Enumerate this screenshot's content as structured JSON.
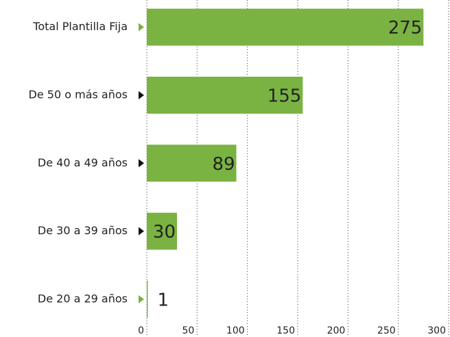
{
  "chart_data": {
    "type": "bar",
    "orientation": "horizontal",
    "categories": [
      "Total Plantilla Fija",
      "De 50 o más años",
      "De 40 a 49 años",
      "De 30 a 39 años",
      "De 20 a 29 años"
    ],
    "values": [
      275,
      155,
      89,
      30,
      1
    ],
    "color": "#7ab342",
    "marker_colors": [
      "#7ab342",
      "#111111",
      "#111111",
      "#111111",
      "#7ab342"
    ],
    "xlim": [
      0,
      300
    ],
    "xticks": [
      0,
      50,
      100,
      150,
      200,
      250,
      300
    ],
    "grid": true
  }
}
